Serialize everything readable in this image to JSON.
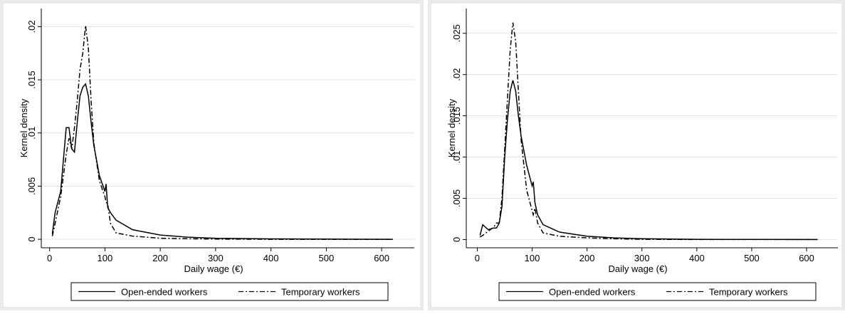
{
  "chart_data": [
    {
      "type": "line",
      "xlabel": "Daily wage (€)",
      "ylabel": "Kernel density",
      "grid": true,
      "xlim": [
        -15,
        659
      ],
      "xticks": [
        0,
        100,
        200,
        300,
        400,
        500,
        600
      ],
      "ylim": [
        -0.0008,
        0.0217
      ],
      "yticks": [
        {
          "value": 0,
          "label": "0"
        },
        {
          "value": 0.005,
          "label": ".005"
        },
        {
          "value": 0.01,
          "label": ".01"
        },
        {
          "value": 0.015,
          "label": ".015"
        },
        {
          "value": 0.02,
          "label": ".02"
        }
      ],
      "x": [
        5,
        10,
        20,
        30,
        35,
        40,
        45,
        50,
        55,
        60,
        65,
        70,
        75,
        80,
        90,
        100,
        102,
        105,
        110,
        120,
        150,
        200,
        250,
        300,
        400,
        500,
        620
      ],
      "series": [
        {
          "name": "Open-ended workers",
          "color": "#000000",
          "dash": "solid",
          "values": [
            0.0005,
            0.0025,
            0.0045,
            0.0105,
            0.0105,
            0.0085,
            0.0082,
            0.011,
            0.0135,
            0.0143,
            0.0146,
            0.0135,
            0.011,
            0.0088,
            0.006,
            0.0045,
            0.0052,
            0.003,
            0.0025,
            0.0018,
            0.0009,
            0.0004,
            0.0002,
            0.0001,
            4e-05,
            2e-05,
            0
          ]
        },
        {
          "name": "Temporary workers",
          "color": "#000000",
          "dash": "dashdot",
          "values": [
            0.0003,
            0.0015,
            0.004,
            0.008,
            0.0095,
            0.0085,
            0.0105,
            0.013,
            0.016,
            0.0175,
            0.0201,
            0.018,
            0.013,
            0.009,
            0.0055,
            0.004,
            0.0035,
            0.0033,
            0.0015,
            0.0006,
            0.0003,
            0.0001,
            5e-05,
            2e-05,
            0,
            0,
            0
          ]
        }
      ]
    },
    {
      "type": "line",
      "xlabel": "Daily wage (€)",
      "ylabel": "Kernel density",
      "grid": true,
      "xlim": [
        -20,
        657
      ],
      "xticks": [
        0,
        100,
        200,
        300,
        400,
        500,
        600
      ],
      "ylim": [
        -0.001,
        0.028
      ],
      "yticks": [
        {
          "value": 0,
          "label": "0"
        },
        {
          "value": 0.005,
          "label": ".005"
        },
        {
          "value": 0.01,
          "label": ".01"
        },
        {
          "value": 0.015,
          "label": ".015"
        },
        {
          "value": 0.02,
          "label": ".02"
        },
        {
          "value": 0.025,
          "label": ".025"
        }
      ],
      "x": [
        5,
        10,
        20,
        30,
        35,
        40,
        45,
        50,
        55,
        60,
        65,
        70,
        75,
        80,
        90,
        100,
        102,
        105,
        110,
        120,
        150,
        200,
        250,
        300,
        400,
        500,
        620
      ],
      "series": [
        {
          "name": "Open-ended workers",
          "color": "#000000",
          "dash": "solid",
          "values": [
            0.0005,
            0.0018,
            0.0012,
            0.0014,
            0.0014,
            0.002,
            0.004,
            0.01,
            0.0145,
            0.018,
            0.0193,
            0.018,
            0.015,
            0.0125,
            0.009,
            0.0065,
            0.007,
            0.0045,
            0.003,
            0.0018,
            0.0009,
            0.0004,
            0.0002,
            0.0001,
            3e-05,
            1e-05,
            0
          ]
        },
        {
          "name": "Temporary workers",
          "color": "#000000",
          "dash": "dashdot",
          "values": [
            0.0003,
            0.0005,
            0.001,
            0.0015,
            0.002,
            0.002,
            0.005,
            0.011,
            0.017,
            0.023,
            0.0263,
            0.024,
            0.018,
            0.012,
            0.006,
            0.0035,
            0.003,
            0.0038,
            0.002,
            0.0008,
            0.0004,
            0.0002,
            0.0001,
            3e-05,
            0,
            0,
            0
          ]
        }
      ]
    }
  ]
}
